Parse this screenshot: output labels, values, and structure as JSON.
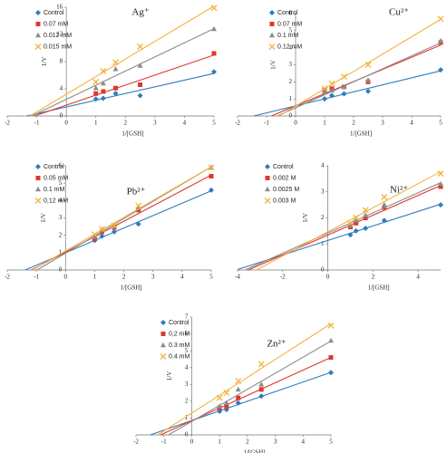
{
  "chart_data": [
    {
      "type": "scatter",
      "title": "Ag⁺",
      "x_label": "1/[GSH]",
      "y_label": "1/V",
      "x": [
        1,
        1.25,
        1.67,
        2.5,
        5
      ],
      "series": [
        {
          "name": "Control",
          "color": "#2f7bbf",
          "marker": "diamond",
          "values": [
            2.5,
            2.6,
            3.3,
            3.0,
            6.5
          ]
        },
        {
          "name": "0.07 mM",
          "color": "#e0362c",
          "marker": "square",
          "values": [
            3.3,
            3.6,
            4.1,
            4.6,
            9.2
          ]
        },
        {
          "name": "0.012 mM",
          "color": "#8c8c8c",
          "marker": "triangle",
          "values": [
            4.1,
            4.8,
            6.9,
            7.4,
            12.8
          ]
        },
        {
          "name": "0.015 mM",
          "color": "#f4b23e",
          "marker": "x",
          "values": [
            5.0,
            6.6,
            7.9,
            10.2,
            15.9
          ]
        }
      ],
      "xlim": [
        -2,
        5
      ],
      "xticks": [
        -2,
        -1,
        0,
        1,
        2,
        3,
        4,
        5
      ],
      "ylim": [
        0,
        16
      ],
      "yticks": [
        0,
        4,
        8,
        12,
        16
      ],
      "trendline": true
    },
    {
      "type": "scatter",
      "title": "Cu²⁺",
      "x_label": "1/[GSH]",
      "y_label": "1/V",
      "x": [
        1,
        1.25,
        1.67,
        2.5,
        5
      ],
      "series": [
        {
          "name": "Control",
          "color": "#2f7bbf",
          "marker": "diamond",
          "values": [
            1.0,
            1.2,
            1.3,
            1.45,
            2.7
          ]
        },
        {
          "name": "0.07 mM",
          "color": "#e0362c",
          "marker": "square",
          "values": [
            1.5,
            1.6,
            1.7,
            2.0,
            4.3
          ]
        },
        {
          "name": "0.1 mM",
          "color": "#8c8c8c",
          "marker": "triangle",
          "values": [
            1.4,
            1.5,
            1.7,
            2.1,
            4.4
          ]
        },
        {
          "name": "0.12 mM",
          "color": "#f4b23e",
          "marker": "x",
          "values": [
            1.6,
            1.9,
            2.3,
            3.0,
            5.7
          ]
        }
      ],
      "xlim": [
        -2,
        5
      ],
      "xticks": [
        -2,
        -1,
        0,
        1,
        2,
        3,
        4,
        5
      ],
      "ylim": [
        0,
        6
      ],
      "yticks": [
        0,
        1,
        2,
        3,
        4,
        5,
        6
      ],
      "trendline": true
    },
    {
      "type": "scatter",
      "title": "Pb²⁺",
      "x_label": "1/[GSH]",
      "y_label": "1/V",
      "x": [
        1,
        1.25,
        1.67,
        2.5,
        5
      ],
      "series": [
        {
          "name": "Control",
          "color": "#2f7bbf",
          "marker": "diamond",
          "values": [
            1.7,
            1.95,
            2.2,
            2.65,
            4.6
          ]
        },
        {
          "name": "0.05 mM",
          "color": "#e0362c",
          "marker": "square",
          "values": [
            1.8,
            2.2,
            2.45,
            3.45,
            5.4
          ]
        },
        {
          "name": "0.1 mM",
          "color": "#8c8c8c",
          "marker": "triangle",
          "values": [
            1.9,
            2.3,
            2.5,
            3.6,
            5.9
          ]
        },
        {
          "name": "0,12 mM",
          "color": "#f4b23e",
          "marker": "x",
          "values": [
            2.05,
            2.35,
            2.55,
            3.7,
            5.9
          ]
        }
      ],
      "xlim": [
        -2,
        5
      ],
      "xticks": [
        -2,
        -1,
        0,
        1,
        2,
        3,
        4,
        5
      ],
      "ylim": [
        0,
        6
      ],
      "yticks": [
        0,
        1,
        2,
        3,
        4,
        5,
        6
      ],
      "trendline": true
    },
    {
      "type": "scatter",
      "title": "Ni²⁺",
      "x_label": "1/[GSH]",
      "y_label": "1/V",
      "x": [
        1,
        1.25,
        1.67,
        2.5,
        5
      ],
      "series": [
        {
          "name": "Control",
          "color": "#2f7bbf",
          "marker": "diamond",
          "values": [
            1.35,
            1.5,
            1.6,
            1.9,
            2.5
          ]
        },
        {
          "name": "0.002 M",
          "color": "#e0362c",
          "marker": "square",
          "values": [
            1.65,
            1.8,
            2.0,
            2.4,
            3.2
          ]
        },
        {
          "name": "0.0025 M",
          "color": "#8c8c8c",
          "marker": "triangle",
          "values": [
            1.7,
            1.9,
            2.1,
            2.5,
            3.3
          ]
        },
        {
          "name": "0.003 M",
          "color": "#f4b23e",
          "marker": "x",
          "values": [
            1.8,
            2.0,
            2.3,
            2.8,
            3.7
          ]
        }
      ],
      "xlim": [
        -4,
        5
      ],
      "xticks": [
        -4,
        -2,
        0,
        2,
        4
      ],
      "ylim": [
        0,
        4
      ],
      "yticks": [
        0,
        1,
        2,
        3,
        4
      ],
      "trendline": true
    },
    {
      "type": "scatter",
      "title": "Zn²⁺",
      "x_label": "1/[GSH]",
      "y_label": "1/V",
      "x": [
        1,
        1.25,
        1.67,
        2.5,
        5
      ],
      "series": [
        {
          "name": "Control",
          "color": "#2f7bbf",
          "marker": "diamond",
          "values": [
            1.4,
            1.5,
            1.9,
            2.3,
            3.7
          ]
        },
        {
          "name": "0,2 mM",
          "color": "#e0362c",
          "marker": "square",
          "values": [
            1.6,
            1.7,
            2.2,
            2.7,
            4.6
          ]
        },
        {
          "name": "0.3 mM",
          "color": "#8c8c8c",
          "marker": "triangle",
          "values": [
            1.7,
            1.9,
            2.7,
            3.0,
            5.6
          ]
        },
        {
          "name": "0.4 mM",
          "color": "#f4b23e",
          "marker": "x",
          "values": [
            2.2,
            2.5,
            3.2,
            4.2,
            6.5
          ]
        }
      ],
      "xlim": [
        -2,
        5
      ],
      "xticks": [
        -2,
        -1,
        0,
        1,
        2,
        3,
        4,
        5
      ],
      "ylim": [
        0,
        7
      ],
      "yticks": [
        0,
        1,
        2,
        3,
        4,
        5,
        6,
        7
      ],
      "trendline": true
    }
  ]
}
